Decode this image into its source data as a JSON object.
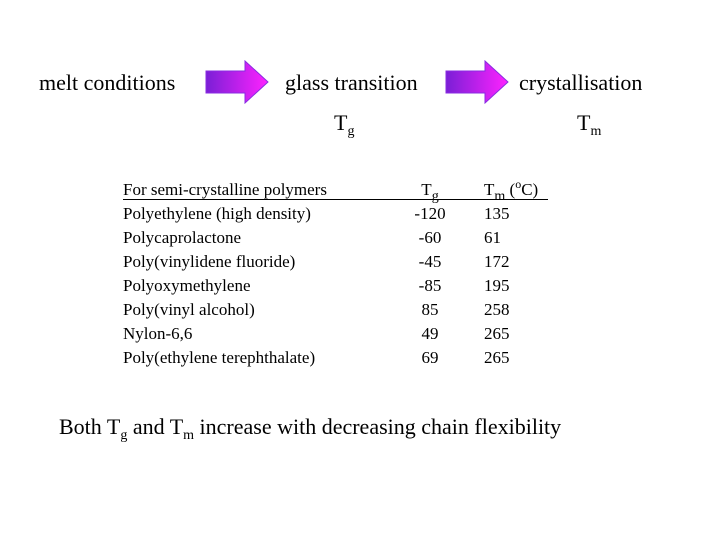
{
  "flow": {
    "steps": [
      {
        "label": "melt conditions"
      },
      {
        "label": "glass transition",
        "symbol": "T",
        "symbol_sub": "g"
      },
      {
        "label": "crystallisation",
        "symbol": "T",
        "symbol_sub": "m"
      }
    ],
    "arrow_colors": {
      "start": "#7a1fd6",
      "end": "#ff22ff",
      "edge": "#8a2be2"
    }
  },
  "table": {
    "headers": {
      "name": "For semi-crystalline polymers",
      "tg_main": "T",
      "tg_sub": "g",
      "tm_main": "T",
      "tm_sub": "m",
      "tm_unit_open": " (",
      "tm_unit_sup": "o",
      "tm_unit_close": "C)"
    },
    "rows": [
      {
        "name": "Polyethylene (high density)",
        "tg": "-120",
        "tm": "135"
      },
      {
        "name": "Polycaprolactone",
        "tg": "-60",
        "tm": "61"
      },
      {
        "name": "Poly(vinylidene fluoride)",
        "tg": "-45",
        "tm": "172"
      },
      {
        "name": "Polyoxymethylene",
        "tg": "-85",
        "tm": "195"
      },
      {
        "name": "Poly(vinyl alcohol)",
        "tg": "85",
        "tm": "258"
      },
      {
        "name": "Nylon-6,6",
        "tg": "49",
        "tm": "265"
      },
      {
        "name": "Poly(ethylene terephthalate)",
        "tg": "69",
        "tm": "265"
      }
    ]
  },
  "conclusion": {
    "part1": "Both T",
    "sub1": "g",
    "part2": " and T",
    "sub2": "m",
    "part3": " increase with decreasing chain flexibility"
  }
}
